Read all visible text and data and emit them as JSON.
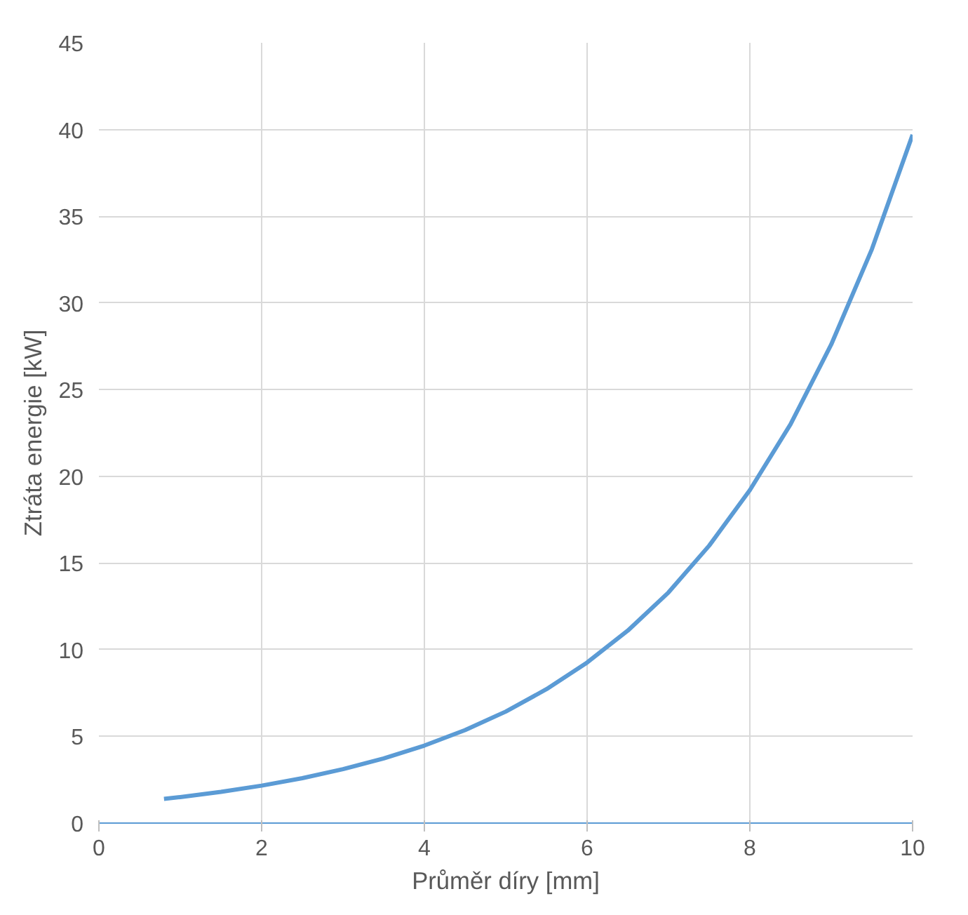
{
  "chart_data": {
    "type": "line",
    "xlabel": "Průměr díry [mm]",
    "ylabel": "Ztráta energie [kW]",
    "x": [
      0.8,
      1,
      1.5,
      2,
      2.5,
      3,
      3.5,
      4,
      4.5,
      5,
      5.5,
      6,
      6.5,
      7,
      7.5,
      8,
      8.5,
      9,
      9.5,
      10
    ],
    "series": [
      {
        "color": "#5b9bd5",
        "values": [
          1.4,
          1.5,
          1.8,
          2.16,
          2.59,
          3.11,
          3.73,
          4.47,
          5.36,
          6.43,
          7.72,
          9.26,
          11.1,
          13.3,
          16.0,
          19.2,
          23.0,
          27.6,
          33.1,
          39.7
        ]
      }
    ],
    "xlim": [
      0,
      10
    ],
    "ylim": [
      0,
      45
    ],
    "xticks": [
      0,
      2,
      4,
      6,
      8,
      10
    ],
    "yticks": [
      0,
      5,
      10,
      15,
      20,
      25,
      30,
      35,
      40,
      45
    ],
    "grid": true,
    "marker": "none",
    "line_style": "solid"
  }
}
